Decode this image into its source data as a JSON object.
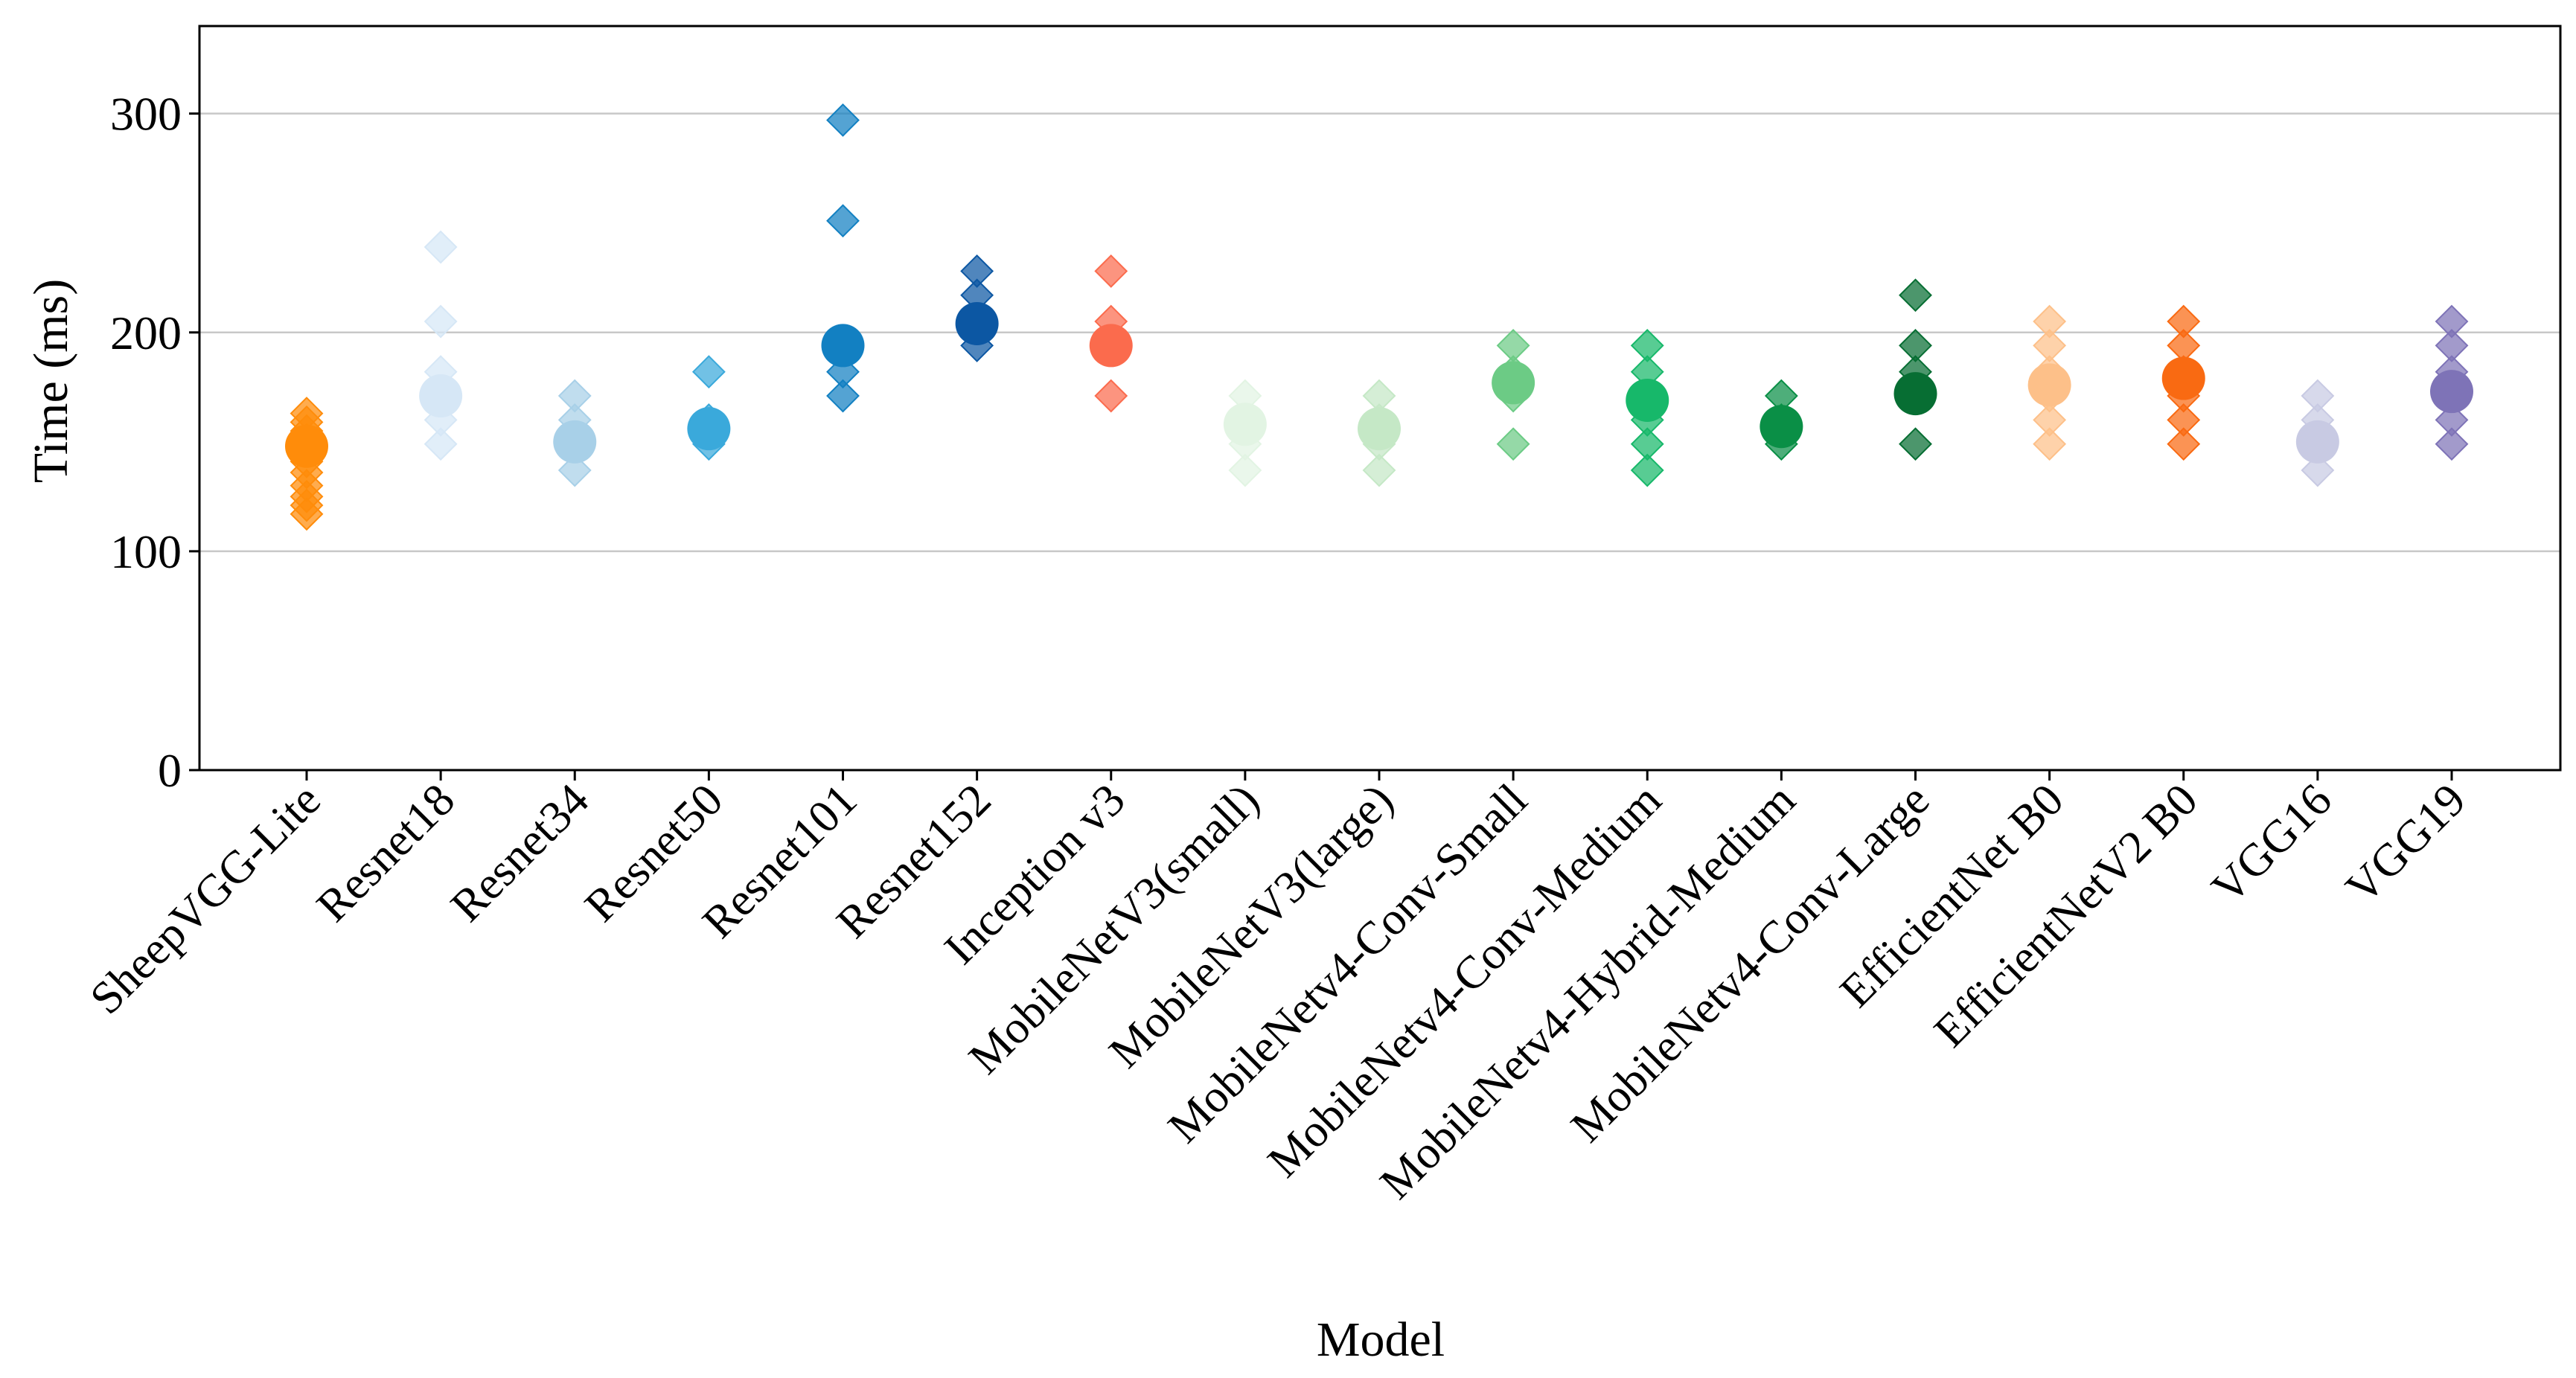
{
  "chart_data": {
    "type": "scatter",
    "title": "",
    "xlabel": "Model",
    "ylabel": "Time (ms)",
    "ylim": [
      0,
      340
    ],
    "yticks": [
      0,
      100,
      200,
      300
    ],
    "grid": "horizontal",
    "marker_note": "diamonds = individual runs, large circle = mean",
    "categories": [
      "SheepVGG-Lite",
      "Resnet18",
      "Resnet34",
      "Resnet50",
      "Resnet101",
      "Resnet152",
      "Inception v3",
      "MobileNetV3(small)",
      "MobileNetV3(large)",
      "MobileNetv4-Conv-Small",
      "MobileNetv4-Conv-Medium",
      "MobileNetv4-Hybrid-Medium",
      "MobileNetv4-Conv-Large",
      "EfficientNet B0",
      "EfficientNetV2 B0",
      "VGG16",
      "VGG19"
    ],
    "series": [
      {
        "name": "SheepVGG-Lite",
        "color": "#ff8c0a",
        "points": [
          117,
          121,
          125,
          130,
          136,
          141,
          146,
          151,
          155,
          159,
          163
        ],
        "mean": 148
      },
      {
        "name": "Resnet18",
        "color": "#d6e7f6",
        "points": [
          149,
          160,
          171,
          182,
          205,
          239
        ],
        "mean": 171
      },
      {
        "name": "Resnet34",
        "color": "#a8d0e8",
        "points": [
          137,
          149,
          160,
          171
        ],
        "mean": 150
      },
      {
        "name": "Resnet50",
        "color": "#3aa9db",
        "points": [
          149,
          160,
          182
        ],
        "mean": 156
      },
      {
        "name": "Resnet101",
        "color": "#1280c2",
        "points": [
          171,
          182,
          194,
          251,
          297
        ],
        "mean": 194
      },
      {
        "name": "Resnet152",
        "color": "#0c57a3",
        "points": [
          194,
          205,
          217,
          228
        ],
        "mean": 204
      },
      {
        "name": "Inception v3",
        "color": "#fb6b4d",
        "points": [
          171,
          194,
          205,
          228
        ],
        "mean": 194
      },
      {
        "name": "MobileNetV3(small)",
        "color": "#e2f4e3",
        "points": [
          137,
          149,
          160,
          171
        ],
        "mean": 158
      },
      {
        "name": "MobileNetV3(large)",
        "color": "#c5e8c6",
        "points": [
          137,
          149,
          160,
          171
        ],
        "mean": 156
      },
      {
        "name": "MobileNetv4-Conv-Small",
        "color": "#6ccb85",
        "points": [
          149,
          171,
          182,
          194
        ],
        "mean": 177
      },
      {
        "name": "MobileNetv4-Conv-Medium",
        "color": "#17b86a",
        "points": [
          137,
          149,
          160,
          171,
          182,
          194
        ],
        "mean": 169
      },
      {
        "name": "MobileNetv4-Hybrid-Medium",
        "color": "#0a8f46",
        "points": [
          149,
          160,
          171
        ],
        "mean": 157
      },
      {
        "name": "MobileNetv4-Conv-Large",
        "color": "#076e33",
        "points": [
          149,
          171,
          182,
          194,
          217
        ],
        "mean": 172
      },
      {
        "name": "EfficientNet B0",
        "color": "#fdc089",
        "points": [
          149,
          160,
          171,
          182,
          194,
          205
        ],
        "mean": 176
      },
      {
        "name": "EfficientNetV2 B0",
        "color": "#f96a12",
        "points": [
          149,
          160,
          171,
          182,
          194,
          205
        ],
        "mean": 179
      },
      {
        "name": "VGG16",
        "color": "#c8cae3",
        "points": [
          137,
          149,
          160,
          171
        ],
        "mean": 150
      },
      {
        "name": "VGG19",
        "color": "#7e73b7",
        "points": [
          149,
          160,
          171,
          182,
          194,
          205
        ],
        "mean": 173
      }
    ]
  }
}
